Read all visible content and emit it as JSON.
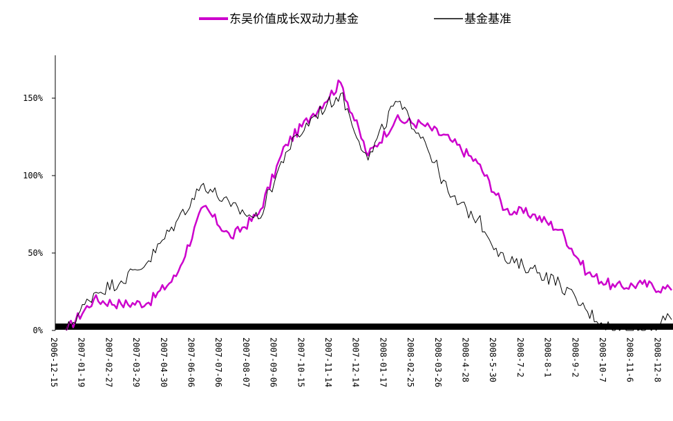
{
  "chart_data": {
    "type": "line",
    "title": "",
    "xlabel": "",
    "ylabel": "",
    "ylim": [
      0,
      170
    ],
    "y_ticks": [
      0,
      50,
      100,
      150
    ],
    "y_tick_labels": [
      "0%",
      "50%",
      "100%",
      "150%"
    ],
    "legend_position": "top-center",
    "grid": false,
    "x_tick_labels": [
      "2006-12-15",
      "2007-01-19",
      "2007-02-27",
      "2007-03-29",
      "2007-04-30",
      "2007-06-06",
      "2007-07-06",
      "2007-08-07",
      "2007-09-06",
      "2007-10-15",
      "2007-11-14",
      "2007-12-14",
      "2008-01-17",
      "2008-02-25",
      "2008-03-26",
      "2008-4-28",
      "2008-5-30",
      "2008-7-2",
      "2008-8-1",
      "2008-9-2",
      "2008-10-7",
      "2008-11-6",
      "2008-12-8"
    ],
    "series": [
      {
        "name": "东吴价值成长双动力基金",
        "color": "#cc00cc",
        "values": [
          0,
          20,
          17,
          18,
          35,
          80,
          60,
          75,
          120,
          140,
          160,
          113,
          136,
          133,
          123,
          108,
          78,
          75,
          65,
          37,
          28,
          30,
          26
        ]
      },
      {
        "name": "基金基准",
        "color": "#000000",
        "values": [
          0,
          24,
          32,
          45,
          70,
          95,
          80,
          72,
          115,
          138,
          153,
          110,
          148,
          125,
          86,
          72,
          45,
          40,
          30,
          12,
          0,
          0,
          7
        ]
      }
    ]
  }
}
